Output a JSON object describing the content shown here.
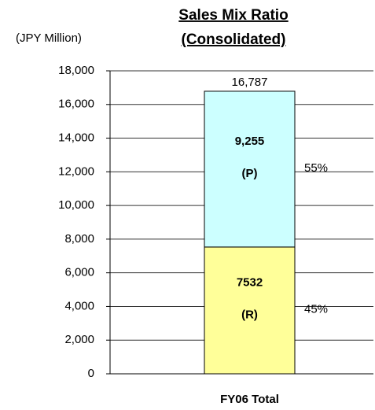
{
  "chart_data": {
    "type": "stacked_bar",
    "title": [
      "Sales Mix Ratio",
      "(Consolidated)"
    ],
    "y_axis_label": "(JPY Million)",
    "categories": [
      "FY06 Total"
    ],
    "series": [
      {
        "name": "(R)",
        "color": "#ffff99",
        "values": [
          7532
        ],
        "value_labels": [
          "7532"
        ],
        "share": [
          45
        ],
        "share_labels": [
          "45%"
        ]
      },
      {
        "name": "(P)",
        "color": "#ccffff",
        "values": [
          9255
        ],
        "value_labels": [
          "9,255"
        ],
        "share": [
          55
        ],
        "share_labels": [
          "55%"
        ]
      }
    ],
    "total_label": "16,787",
    "ylim": [
      0,
      18000
    ],
    "yticks": [
      0,
      {
        "value": 2000,
        "label": "2,000"
      },
      {
        "value": 4000,
        "label": "4,000"
      },
      {
        "value": 6000,
        "label": "6,000"
      },
      {
        "value": 8000,
        "label": "8,000"
      },
      {
        "value": 10000,
        "label": "10,000"
      },
      {
        "value": 12000,
        "label": "12,000"
      },
      {
        "value": 14000,
        "label": "14,000"
      },
      {
        "value": 16000,
        "label": "16,000"
      },
      {
        "value": 18000,
        "label": "18,000"
      }
    ],
    "grid": true
  }
}
